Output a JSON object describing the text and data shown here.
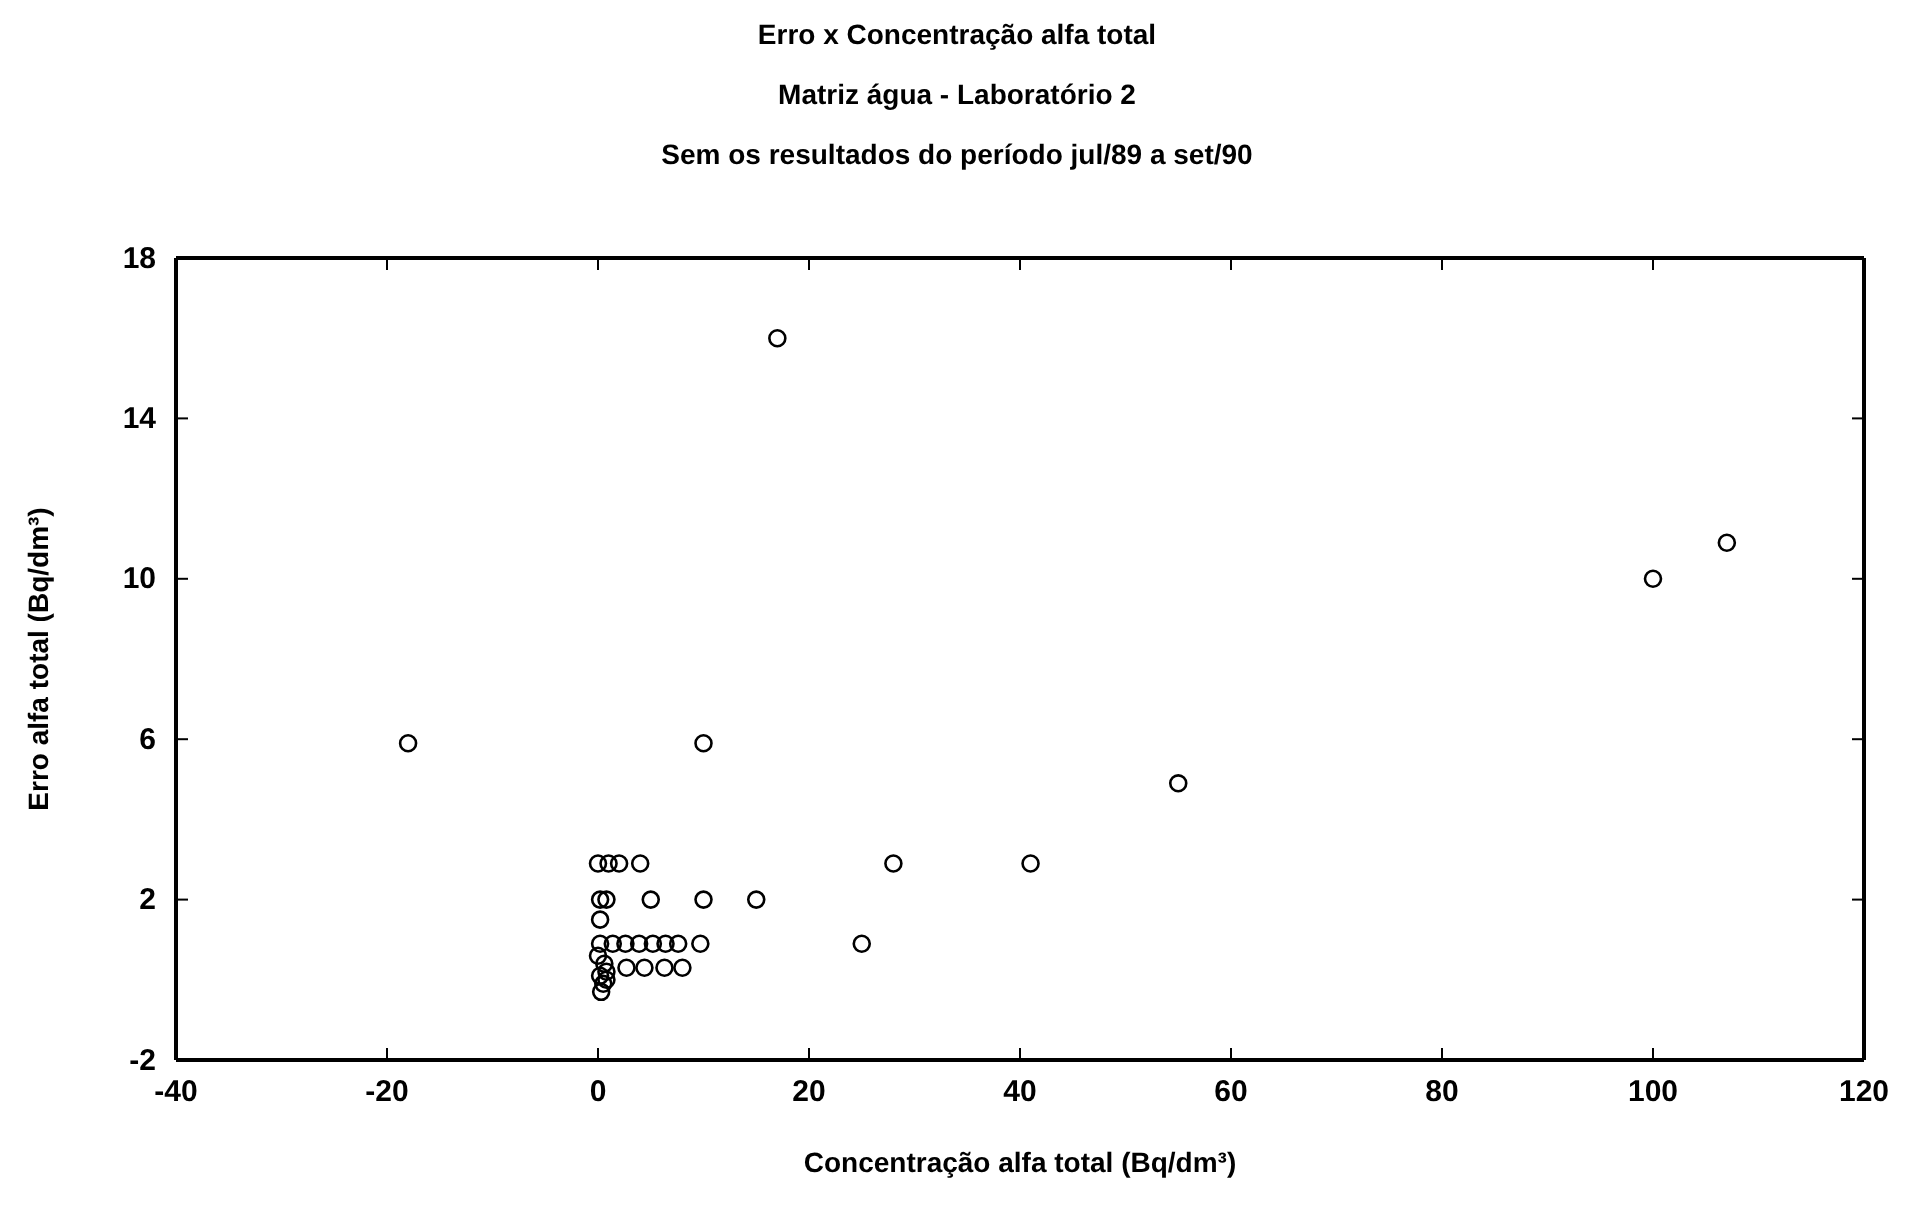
{
  "chart_data": {
    "type": "scatter",
    "title": "Erro x Concentração alfa total",
    "subtitle": "Matriz água - Laboratório  2",
    "annotations": [
      "Sem os resultados do período jul/89 a set/90"
    ],
    "xlabel": "Concentração alfa total (Bq/dm³)",
    "ylabel": "Erro alfa total (Bq/dm³)",
    "xlim": [
      -40,
      120
    ],
    "xticks": [
      -40,
      -20,
      0,
      20,
      40,
      60,
      80,
      100,
      120
    ],
    "ylim": [
      -2,
      18
    ],
    "yticks": [
      -2,
      2,
      6,
      10,
      14,
      18
    ],
    "grid": false,
    "marker": "circle",
    "series": [
      {
        "color": "#000000",
        "x": [
          -18,
          10,
          17,
          100,
          107,
          55,
          28,
          41,
          25,
          15,
          10,
          5,
          0.2,
          0.8,
          0,
          1,
          2,
          4,
          0.2,
          0.2,
          1.4,
          2.6,
          3.9,
          5.2,
          6.4,
          7.6,
          9.7,
          2.7,
          4.4,
          6.3,
          8,
          0,
          0.6,
          0.2,
          0.8,
          0.5,
          0.3,
          0.8
        ],
        "values": [
          5.9,
          5.9,
          16,
          10,
          10.9,
          4.9,
          2.9,
          2.9,
          0.9,
          2,
          2,
          2,
          2,
          2,
          2.9,
          2.9,
          2.9,
          2.9,
          1.5,
          0.9,
          0.9,
          0.9,
          0.9,
          0.9,
          0.9,
          0.9,
          0.9,
          0.3,
          0.3,
          0.3,
          0.3,
          0.6,
          0.4,
          0.1,
          0,
          -0.1,
          -0.3,
          0.2
        ]
      }
    ]
  }
}
